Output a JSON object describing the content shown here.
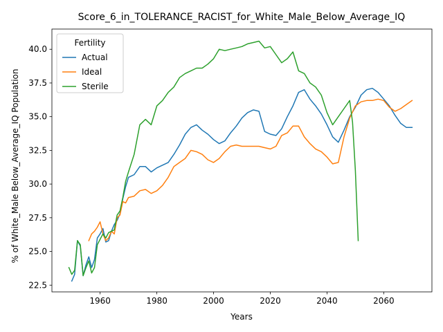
{
  "chart_data": {
    "type": "line",
    "title": "Score_6_in_TOLERANCE_RACIST_for_White_Male_Below_Average_IQ",
    "xlabel": "Years",
    "ylabel": "% of White_Male Below_Average_IQ Population",
    "xlim": [
      1943,
      2077
    ],
    "ylim": [
      22.0,
      41.5
    ],
    "xticks": [
      1960,
      1980,
      2000,
      2020,
      2040,
      2060
    ],
    "yticks": [
      22.5,
      25.0,
      27.5,
      30.0,
      32.5,
      35.0,
      37.5,
      40.0
    ],
    "ytick_labels": [
      "22.5",
      "25.0",
      "27.5",
      "30.0",
      "32.5",
      "35.0",
      "37.5",
      "40.0"
    ],
    "grid": false,
    "legend": {
      "title": "Fertility",
      "placement": "upper-left"
    },
    "series": [
      {
        "name": "Actual",
        "color": "#1f77b4",
        "x": [
          1950,
          1951,
          1952,
          1953,
          1954,
          1955,
          1956,
          1957,
          1958,
          1959,
          1960,
          1961,
          1962,
          1963,
          1964,
          1965,
          1966,
          1967,
          1968,
          1969,
          1970,
          1972,
          1974,
          1976,
          1978,
          1980,
          1982,
          1984,
          1986,
          1988,
          1990,
          1992,
          1994,
          1996,
          1998,
          2000,
          2002,
          2004,
          2006,
          2008,
          2010,
          2012,
          2014,
          2016,
          2018,
          2020,
          2022,
          2024,
          2026,
          2028,
          2030,
          2032,
          2034,
          2036,
          2038,
          2040,
          2042,
          2044,
          2046,
          2048,
          2050,
          2052,
          2054,
          2056,
          2058,
          2060,
          2062,
          2064,
          2066,
          2068,
          2070
        ],
        "values": [
          22.8,
          23.3,
          25.8,
          25.4,
          23.2,
          24.0,
          24.6,
          23.8,
          24.4,
          26.0,
          26.3,
          26.7,
          25.7,
          25.8,
          26.5,
          27.0,
          27.3,
          27.8,
          28.9,
          29.8,
          30.5,
          30.7,
          31.3,
          31.3,
          30.9,
          31.2,
          31.4,
          31.6,
          32.2,
          32.9,
          33.7,
          34.2,
          34.4,
          34.0,
          33.7,
          33.3,
          33.0,
          33.2,
          33.8,
          34.3,
          34.9,
          35.3,
          35.5,
          35.4,
          33.9,
          33.7,
          33.6,
          34.1,
          35.0,
          35.8,
          36.8,
          37.0,
          36.3,
          35.8,
          35.2,
          34.4,
          33.5,
          33.1,
          34.0,
          35.0,
          35.7,
          36.6,
          37.0,
          37.1,
          36.8,
          36.3,
          35.8,
          35.1,
          34.5,
          34.2,
          34.2
        ]
      },
      {
        "name": "Ideal",
        "color": "#ff7f0e",
        "x": [
          1956,
          1957,
          1958,
          1959,
          1960,
          1961,
          1962,
          1963,
          1964,
          1965,
          1966,
          1967,
          1968,
          1969,
          1970,
          1972,
          1974,
          1976,
          1978,
          1980,
          1982,
          1984,
          1986,
          1988,
          1990,
          1992,
          1994,
          1996,
          1998,
          2000,
          2002,
          2004,
          2006,
          2008,
          2010,
          2012,
          2014,
          2016,
          2018,
          2020,
          2022,
          2024,
          2026,
          2028,
          2030,
          2032,
          2034,
          2036,
          2038,
          2040,
          2042,
          2044,
          2046,
          2048,
          2050,
          2052,
          2054,
          2056,
          2058,
          2060,
          2062,
          2064,
          2066,
          2068,
          2070
        ],
        "values": [
          25.8,
          26.3,
          26.5,
          26.8,
          27.2,
          26.3,
          25.8,
          26.0,
          26.5,
          26.3,
          27.5,
          27.7,
          28.7,
          28.6,
          29.0,
          29.1,
          29.5,
          29.6,
          29.3,
          29.5,
          29.9,
          30.5,
          31.3,
          31.6,
          31.9,
          32.5,
          32.4,
          32.2,
          31.8,
          31.6,
          31.9,
          32.4,
          32.8,
          32.9,
          32.8,
          32.8,
          32.8,
          32.8,
          32.7,
          32.6,
          32.8,
          33.6,
          33.8,
          34.3,
          34.3,
          33.5,
          33.0,
          32.6,
          32.4,
          32.0,
          31.5,
          31.6,
          33.5,
          34.9,
          35.8,
          36.1,
          36.2,
          36.2,
          36.3,
          36.2,
          35.7,
          35.4,
          35.6,
          35.9,
          36.2
        ]
      },
      {
        "name": "Sterile",
        "color": "#2ca02c",
        "x": [
          1949,
          1950,
          1951,
          1952,
          1953,
          1954,
          1955,
          1956,
          1957,
          1958,
          1959,
          1960,
          1961,
          1962,
          1963,
          1964,
          1965,
          1966,
          1967,
          1968,
          1969,
          1970,
          1972,
          1974,
          1976,
          1978,
          1980,
          1982,
          1984,
          1986,
          1988,
          1990,
          1992,
          1994,
          1996,
          1998,
          2000,
          2002,
          2004,
          2006,
          2008,
          2010,
          2012,
          2014,
          2016,
          2018,
          2020,
          2022,
          2024,
          2026,
          2028,
          2030,
          2032,
          2034,
          2036,
          2038,
          2040,
          2042,
          2044,
          2046,
          2048,
          2049,
          2050,
          2051
        ],
        "values": [
          23.8,
          23.3,
          23.6,
          25.8,
          25.5,
          23.2,
          23.8,
          24.3,
          23.4,
          23.8,
          25.5,
          25.9,
          26.3,
          26.0,
          26.4,
          26.5,
          26.6,
          27.7,
          28.0,
          29.0,
          30.2,
          30.9,
          32.2,
          34.4,
          34.8,
          34.4,
          35.8,
          36.2,
          36.8,
          37.2,
          37.9,
          38.2,
          38.4,
          38.6,
          38.6,
          38.9,
          39.3,
          40.0,
          39.9,
          40.0,
          40.1,
          40.2,
          40.4,
          40.5,
          40.6,
          40.1,
          40.2,
          39.6,
          39.0,
          39.3,
          39.8,
          38.4,
          38.2,
          37.5,
          37.2,
          36.6,
          35.3,
          34.4,
          35.0,
          35.6,
          36.2,
          34.6,
          31.0,
          25.8
        ]
      }
    ]
  }
}
